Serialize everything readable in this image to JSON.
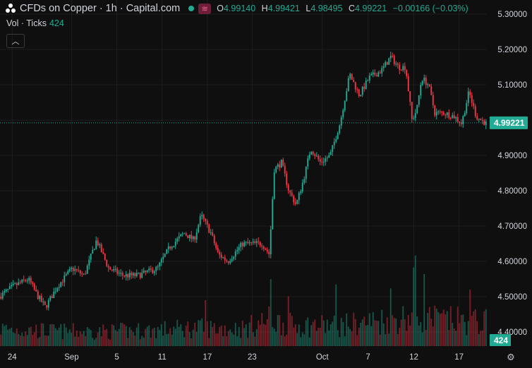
{
  "header": {
    "title": "CFDs on Copper · 1h · Capital.com",
    "ohlc": [
      {
        "key": "O",
        "value": "4.99140"
      },
      {
        "key": "H",
        "value": "4.99421"
      },
      {
        "key": "L",
        "value": "4.98495"
      },
      {
        "key": "C",
        "value": "4.99221"
      }
    ],
    "change": "−0.00166 (−0.03%)"
  },
  "volume_legend": {
    "label": "Vol · Ticks",
    "value": "424"
  },
  "colors": {
    "up": "#22ab94",
    "down": "#f23645",
    "background": "#0f0f0f",
    "grid": "#1e1e1e"
  },
  "icons": {
    "collapse": "chevron-up-icon",
    "settings": "gear-icon",
    "logo": "capital-logo-icon"
  },
  "chart_data": {
    "type": "candlestick",
    "title": "CFDs on Copper · 1h · Capital.com",
    "timeframe": "1h",
    "ylim": [
      4.36,
      5.34
    ],
    "y_ticks": [
      "5.30000",
      "5.20000",
      "5.10000",
      "5.00000",
      "4.90000",
      "4.80000",
      "4.70000",
      "4.60000",
      "4.50000",
      "4.40000"
    ],
    "x_ticks": [
      {
        "label": "24",
        "pos": 0.025
      },
      {
        "label": "Sep",
        "pos": 0.147
      },
      {
        "label": "5",
        "pos": 0.24
      },
      {
        "label": "11",
        "pos": 0.333
      },
      {
        "label": "17",
        "pos": 0.426
      },
      {
        "label": "23",
        "pos": 0.518
      },
      {
        "label": "Oct",
        "pos": 0.662
      },
      {
        "label": "7",
        "pos": 0.756
      },
      {
        "label": "12",
        "pos": 0.85
      },
      {
        "label": "17",
        "pos": 0.943
      }
    ],
    "last_price": "4.99221",
    "last_volume": "424",
    "price_path": [
      [
        0.0,
        4.5
      ],
      [
        0.03,
        4.53
      ],
      [
        0.06,
        4.55
      ],
      [
        0.08,
        4.5
      ],
      [
        0.095,
        4.47
      ],
      [
        0.12,
        4.53
      ],
      [
        0.15,
        4.58
      ],
      [
        0.175,
        4.56
      ],
      [
        0.2,
        4.66
      ],
      [
        0.225,
        4.58
      ],
      [
        0.255,
        4.56
      ],
      [
        0.285,
        4.56
      ],
      [
        0.325,
        4.58
      ],
      [
        0.35,
        4.64
      ],
      [
        0.38,
        4.68
      ],
      [
        0.4,
        4.66
      ],
      [
        0.415,
        4.73
      ],
      [
        0.435,
        4.68
      ],
      [
        0.45,
        4.62
      ],
      [
        0.47,
        4.6
      ],
      [
        0.5,
        4.65
      ],
      [
        0.54,
        4.65
      ],
      [
        0.555,
        4.62
      ],
      [
        0.565,
        4.86
      ],
      [
        0.58,
        4.88
      ],
      [
        0.595,
        4.8
      ],
      [
        0.61,
        4.76
      ],
      [
        0.625,
        4.83
      ],
      [
        0.64,
        4.92
      ],
      [
        0.66,
        4.88
      ],
      [
        0.68,
        4.9
      ],
      [
        0.7,
        4.99
      ],
      [
        0.72,
        5.13
      ],
      [
        0.74,
        5.07
      ],
      [
        0.76,
        5.12
      ],
      [
        0.785,
        5.14
      ],
      [
        0.805,
        5.18
      ],
      [
        0.82,
        5.15
      ],
      [
        0.835,
        5.15
      ],
      [
        0.848,
        5.0
      ],
      [
        0.858,
        5.03
      ],
      [
        0.868,
        5.12
      ],
      [
        0.882,
        5.1
      ],
      [
        0.895,
        5.02
      ],
      [
        0.915,
        5.02
      ],
      [
        0.935,
        5.01
      ],
      [
        0.95,
        4.99
      ],
      [
        0.965,
        5.08
      ],
      [
        0.98,
        5.01
      ],
      [
        1.0,
        4.99
      ]
    ],
    "volume_max": 1400,
    "volume_profile": [
      [
        0.0,
        280
      ],
      [
        0.1,
        240
      ],
      [
        0.2,
        230
      ],
      [
        0.3,
        250
      ],
      [
        0.4,
        290
      ],
      [
        0.5,
        280
      ],
      [
        0.55,
        420
      ],
      [
        0.6,
        330
      ],
      [
        0.7,
        330
      ],
      [
        0.8,
        430
      ],
      [
        0.85,
        480
      ],
      [
        0.9,
        420
      ],
      [
        1.0,
        380
      ]
    ],
    "volume_spikes": [
      [
        0.554,
        1020
      ],
      [
        0.688,
        940
      ],
      [
        0.848,
        1200
      ],
      [
        0.852,
        1380
      ],
      [
        0.8,
        880
      ],
      [
        0.87,
        1100
      ],
      [
        0.965,
        860
      ],
      [
        0.59,
        760
      ],
      [
        0.42,
        700
      ]
    ]
  }
}
